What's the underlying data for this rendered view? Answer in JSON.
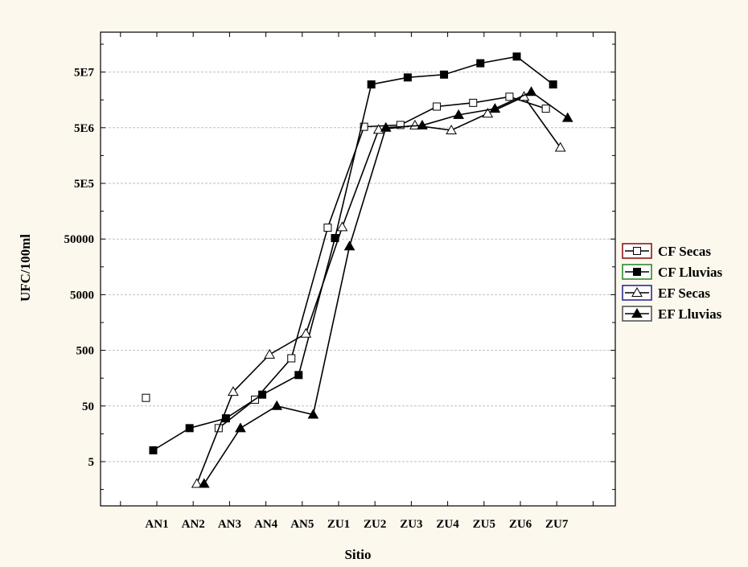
{
  "chart_data": {
    "type": "line",
    "xlabel": "Sitio",
    "ylabel": "UFC/100ml",
    "y_scale": "log",
    "categories": [
      "AN1",
      "AN2",
      "AN3",
      "AN4",
      "AN5",
      "ZU1",
      "ZU2",
      "ZU3",
      "ZU4",
      "ZU5",
      "ZU6",
      "ZU7"
    ],
    "y_ticks": [
      {
        "value": 5,
        "label": "5"
      },
      {
        "value": 50,
        "label": "50"
      },
      {
        "value": 500,
        "label": "500"
      },
      {
        "value": 5000,
        "label": "5000"
      },
      {
        "value": 50000,
        "label": "50000"
      },
      {
        "value": 500000,
        "label": "5E5"
      },
      {
        "value": 5000000,
        "label": "5E6"
      },
      {
        "value": 50000000,
        "label": "5E7"
      }
    ],
    "ylim": [
      0.85,
      300000000
    ],
    "grid": true,
    "legend_position": "right",
    "series": [
      {
        "name": "CF Secas",
        "marker": "square-open",
        "color": "#8b1a1a",
        "values": [
          70,
          null,
          20,
          65,
          360,
          80000,
          5200000,
          5600000,
          12000000,
          14000000,
          18000000,
          11000000
        ]
      },
      {
        "name": "CF Lluvias",
        "marker": "square-filled",
        "color": "#2e8b2e",
        "values": [
          8,
          20,
          30,
          80,
          180,
          52000,
          30000000,
          40000000,
          45000000,
          72000000,
          95000000,
          30000000
        ]
      },
      {
        "name": "EF Secas",
        "marker": "triangle-open",
        "color": "#2b2f8a",
        "values": [
          null,
          2,
          90,
          420,
          1000,
          82000,
          4600000,
          5500000,
          4500000,
          9000000,
          18000000,
          2200000
        ]
      },
      {
        "name": "EF Lluvias",
        "marker": "triangle-filled",
        "color": "#555555",
        "values": [
          null,
          2,
          20,
          50,
          35,
          37000,
          5000000,
          5500000,
          8500000,
          11000000,
          22000000,
          7500000
        ]
      }
    ]
  }
}
